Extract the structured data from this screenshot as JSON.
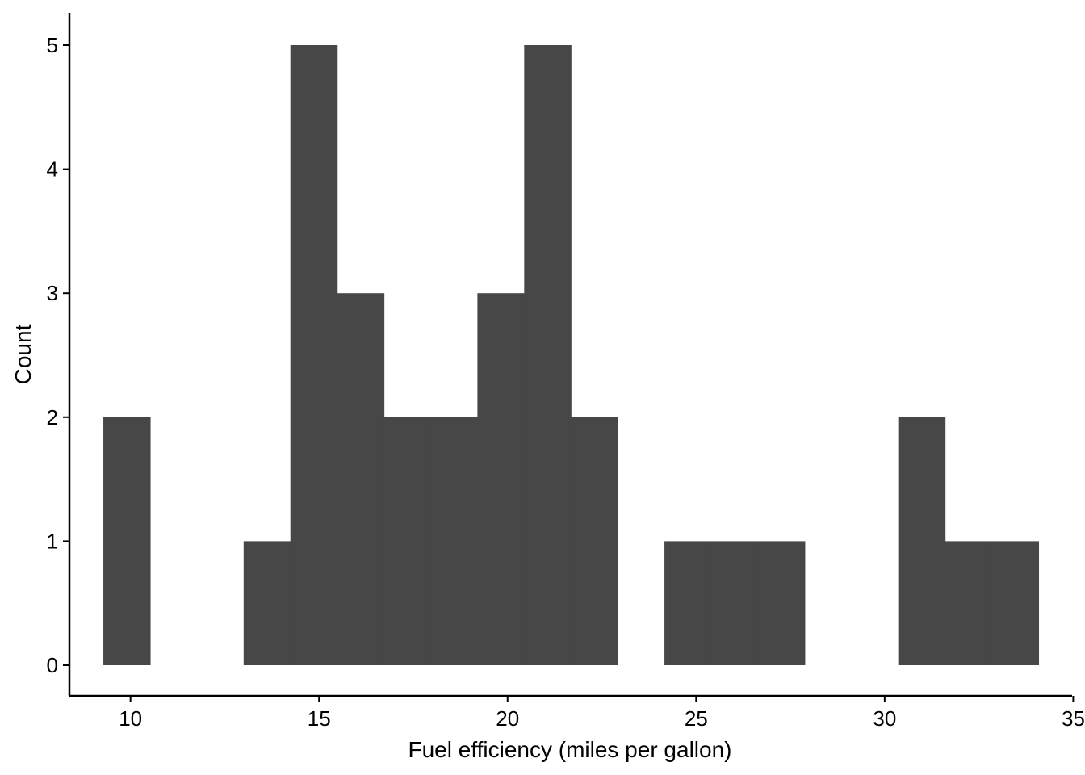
{
  "chart_data": {
    "type": "bar",
    "subtype": "histogram",
    "title": "",
    "xlabel": "Fuel efficiency (miles per gallon)",
    "ylabel": "Count",
    "xlim": [
      8.38,
      34.97
    ],
    "ylim": [
      0,
      5
    ],
    "bin_width": 1.24,
    "x_ticks": [
      10,
      15,
      20,
      25,
      30,
      35
    ],
    "y_ticks": [
      0,
      1,
      2,
      3,
      4,
      5
    ],
    "x_tick_labels": [
      "10",
      "15",
      "20",
      "25",
      "30",
      "35"
    ],
    "y_tick_labels": [
      "0",
      "1",
      "2",
      "3",
      "4",
      "5"
    ],
    "bins": [
      {
        "x0": 9.28,
        "x1": 10.52,
        "count": 2
      },
      {
        "x0": 10.52,
        "x1": 11.76,
        "count": 0
      },
      {
        "x0": 11.76,
        "x1": 13.0,
        "count": 0
      },
      {
        "x0": 13.0,
        "x1": 14.24,
        "count": 1
      },
      {
        "x0": 14.24,
        "x1": 15.48,
        "count": 5
      },
      {
        "x0": 15.48,
        "x1": 16.72,
        "count": 3
      },
      {
        "x0": 16.72,
        "x1": 17.96,
        "count": 2
      },
      {
        "x0": 17.96,
        "x1": 19.2,
        "count": 2
      },
      {
        "x0": 19.2,
        "x1": 20.44,
        "count": 3
      },
      {
        "x0": 20.44,
        "x1": 21.68,
        "count": 5
      },
      {
        "x0": 21.68,
        "x1": 22.92,
        "count": 2
      },
      {
        "x0": 22.92,
        "x1": 24.16,
        "count": 0
      },
      {
        "x0": 24.16,
        "x1": 25.4,
        "count": 1
      },
      {
        "x0": 25.4,
        "x1": 26.64,
        "count": 1
      },
      {
        "x0": 26.64,
        "x1": 27.88,
        "count": 1
      },
      {
        "x0": 27.88,
        "x1": 29.12,
        "count": 0
      },
      {
        "x0": 29.12,
        "x1": 30.36,
        "count": 0
      },
      {
        "x0": 30.36,
        "x1": 31.6,
        "count": 2
      },
      {
        "x0": 31.6,
        "x1": 32.84,
        "count": 1
      },
      {
        "x0": 32.84,
        "x1": 34.08,
        "count": 1
      }
    ],
    "bar_color": "#474747",
    "grid": false,
    "legend": "none"
  }
}
